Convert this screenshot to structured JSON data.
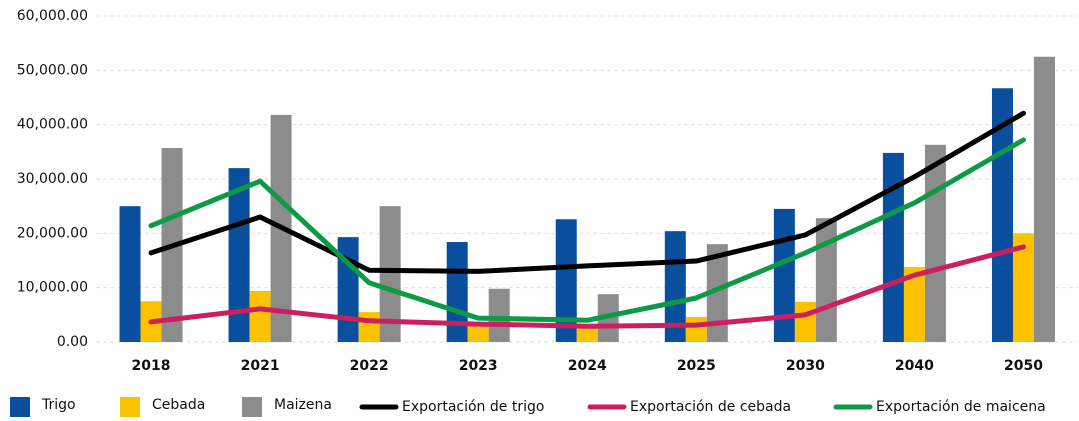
{
  "chart_data": {
    "type": "bar",
    "categories": [
      "2018",
      "2021",
      "2022",
      "2023",
      "2024",
      "2025",
      "2030",
      "2040",
      "2050"
    ],
    "series": [
      {
        "name": "Trigo",
        "type": "bar",
        "color": "#0a4f9e",
        "values": [
          25000,
          32000,
          19300,
          18400,
          22600,
          20400,
          24500,
          34800,
          46700
        ]
      },
      {
        "name": "Cebada",
        "type": "bar",
        "color": "#fcc200",
        "values": [
          7500,
          9400,
          5500,
          3500,
          3000,
          4600,
          7400,
          13800,
          20000
        ]
      },
      {
        "name": "Maizena",
        "type": "bar",
        "color": "#8c8c8c",
        "values": [
          35700,
          41800,
          25000,
          9800,
          8800,
          18000,
          22800,
          36300,
          52500
        ]
      },
      {
        "name": "Exportación de trigo",
        "type": "line",
        "color": "#000000",
        "values": [
          16400,
          23000,
          13200,
          13000,
          14000,
          14900,
          19700,
          30400,
          42100
        ]
      },
      {
        "name": "Exportación de cebada",
        "type": "line",
        "color": "#cc1f5f",
        "values": [
          3700,
          6100,
          3900,
          3300,
          2900,
          3100,
          5000,
          12300,
          17500
        ]
      },
      {
        "name": "Exportación de maicena",
        "type": "line",
        "color": "#0d9a45",
        "values": [
          21400,
          29600,
          10900,
          4400,
          4000,
          8100,
          16400,
          25600,
          37200
        ]
      }
    ],
    "ylim": [
      0,
      60000
    ],
    "yticks": [
      {
        "value": 0,
        "label": "0.00"
      },
      {
        "value": 10000,
        "label": "10,000.00"
      },
      {
        "value": 20000,
        "label": "20,000.00"
      },
      {
        "value": 30000,
        "label": "30,000.00"
      },
      {
        "value": 40000,
        "label": "40,000.00"
      },
      {
        "value": 50000,
        "label": "50,000.00"
      },
      {
        "value": 60000,
        "label": "60,000.00"
      }
    ],
    "grid": true,
    "legend": "bottom"
  }
}
